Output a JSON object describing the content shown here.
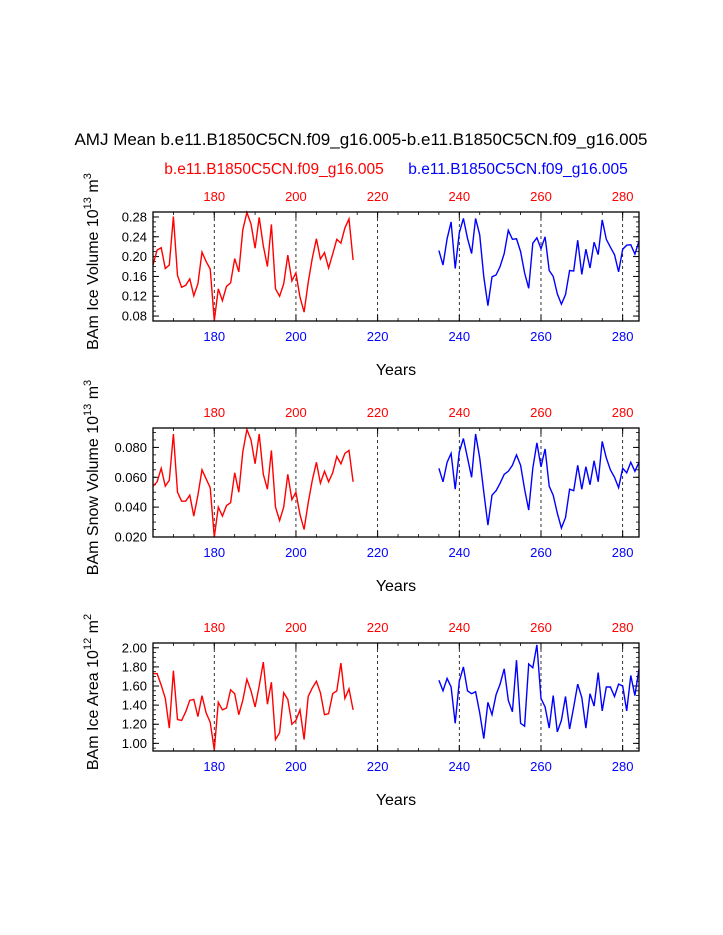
{
  "title": "AMJ Mean b.e11.B1850C5CN.f09_g16.005-b.e11.B1850C5CN.f09_g16.005",
  "legend": {
    "left": "b.e11.B1850C5CN.f09_g16.005",
    "right": "b.e11.B1850C5CN.f09_g16.005"
  },
  "colors": {
    "red": "#ff0000",
    "blue": "#0000ff",
    "axis": "#000000"
  },
  "chart_data": [
    {
      "type": "line",
      "xlabel": "Years",
      "ylabel": {
        "base": "BAm Ice Volume 10",
        "exp": "13",
        "unit": " m",
        "unit_exp": "3"
      },
      "xlim": [
        165,
        284
      ],
      "ylim": [
        0.07,
        0.29
      ],
      "yticks": [
        0.08,
        0.12,
        0.16,
        0.2,
        0.24,
        0.28
      ],
      "ytick_labels": [
        "0.08",
        "0.12",
        "0.16",
        "0.20",
        "0.24",
        "0.28"
      ],
      "yminor": 0.01,
      "xticks": [
        180,
        200,
        220,
        240,
        260,
        280
      ],
      "xtick_labels": [
        "180",
        "200",
        "220",
        "240",
        "260",
        "280"
      ],
      "vlines": [
        180,
        200,
        220,
        240,
        260,
        280
      ],
      "series": [
        {
          "name": "b.e11.B1850C5CN.f09_g16.005",
          "color": "red",
          "x_start": 165,
          "values": [
            0.183,
            0.213,
            0.218,
            0.176,
            0.183,
            0.281,
            0.162,
            0.138,
            0.142,
            0.155,
            0.121,
            0.145,
            0.209,
            0.19,
            0.175,
            0.071,
            0.135,
            0.111,
            0.14,
            0.147,
            0.196,
            0.169,
            0.254,
            0.289,
            0.266,
            0.217,
            0.279,
            0.222,
            0.18,
            0.265,
            0.135,
            0.12,
            0.145,
            0.203,
            0.151,
            0.167,
            0.118,
            0.088,
            0.148,
            0.197,
            0.236,
            0.195,
            0.208,
            0.177,
            0.205,
            0.235,
            0.227,
            0.258,
            0.276,
            0.193
          ]
        },
        {
          "name": "b.e11.B1850C5CN.f09_g16.005",
          "color": "blue",
          "x_start": 235,
          "values": [
            0.212,
            0.183,
            0.236,
            0.27,
            0.176,
            0.248,
            0.277,
            0.237,
            0.206,
            0.277,
            0.244,
            0.159,
            0.101,
            0.159,
            0.163,
            0.18,
            0.206,
            0.253,
            0.235,
            0.236,
            0.21,
            0.167,
            0.136,
            0.227,
            0.238,
            0.216,
            0.24,
            0.172,
            0.16,
            0.125,
            0.104,
            0.123,
            0.172,
            0.171,
            0.233,
            0.164,
            0.215,
            0.177,
            0.229,
            0.204,
            0.274,
            0.235,
            0.219,
            0.204,
            0.169,
            0.215,
            0.223,
            0.224,
            0.205,
            0.231
          ]
        }
      ]
    },
    {
      "type": "line",
      "xlabel": "Years",
      "ylabel": {
        "base": "BAm Snow Volume 10",
        "exp": "13",
        "unit": " m",
        "unit_exp": "3"
      },
      "xlim": [
        165,
        284
      ],
      "ylim": [
        0.02,
        0.093
      ],
      "yticks": [
        0.02,
        0.04,
        0.06,
        0.08
      ],
      "ytick_labels": [
        "0.020",
        "0.040",
        "0.060",
        "0.080"
      ],
      "yminor": 0.005,
      "xticks": [
        180,
        200,
        220,
        240,
        260,
        280
      ],
      "xtick_labels": [
        "180",
        "200",
        "220",
        "240",
        "260",
        "280"
      ],
      "vlines": [
        180,
        200,
        220,
        240,
        260,
        280
      ],
      "series": [
        {
          "name": "b.e11.B1850C5CN.f09_g16.005",
          "color": "red",
          "x_start": 165,
          "values": [
            0.054,
            0.057,
            0.066,
            0.054,
            0.058,
            0.089,
            0.05,
            0.044,
            0.044,
            0.048,
            0.034,
            0.048,
            0.065,
            0.059,
            0.053,
            0.02,
            0.04,
            0.034,
            0.041,
            0.043,
            0.063,
            0.05,
            0.077,
            0.092,
            0.085,
            0.069,
            0.089,
            0.062,
            0.052,
            0.078,
            0.04,
            0.031,
            0.04,
            0.062,
            0.045,
            0.05,
            0.035,
            0.025,
            0.043,
            0.058,
            0.07,
            0.056,
            0.064,
            0.057,
            0.063,
            0.074,
            0.069,
            0.076,
            0.078,
            0.057
          ]
        },
        {
          "name": "b.e11.B1850C5CN.f09_g16.005",
          "color": "blue",
          "x_start": 235,
          "values": [
            0.066,
            0.057,
            0.07,
            0.076,
            0.052,
            0.077,
            0.086,
            0.073,
            0.06,
            0.089,
            0.073,
            0.05,
            0.028,
            0.048,
            0.051,
            0.056,
            0.062,
            0.064,
            0.068,
            0.075,
            0.068,
            0.052,
            0.038,
            0.066,
            0.083,
            0.067,
            0.079,
            0.054,
            0.048,
            0.036,
            0.026,
            0.033,
            0.052,
            0.051,
            0.068,
            0.052,
            0.067,
            0.055,
            0.071,
            0.057,
            0.084,
            0.073,
            0.065,
            0.06,
            0.053,
            0.066,
            0.063,
            0.07,
            0.064,
            0.07
          ]
        }
      ]
    },
    {
      "type": "line",
      "xlabel": "Years",
      "ylabel": {
        "base": "BAm Ice Area 10",
        "exp": "12",
        "unit": " m",
        "unit_exp": "2"
      },
      "xlim": [
        165,
        284
      ],
      "ylim": [
        0.92,
        2.05
      ],
      "yticks": [
        1.0,
        1.2,
        1.4,
        1.6,
        1.8,
        2.0
      ],
      "ytick_labels": [
        "1.00",
        "1.20",
        "1.40",
        "1.60",
        "1.80",
        "2.00"
      ],
      "yminor": 0.05,
      "xticks": [
        180,
        200,
        220,
        240,
        260,
        280
      ],
      "xtick_labels": [
        "180",
        "200",
        "220",
        "240",
        "260",
        "280"
      ],
      "vlines": [
        180,
        200,
        220,
        240,
        260,
        280
      ],
      "series": [
        {
          "name": "b.e11.B1850C5CN.f09_g16.005",
          "color": "red",
          "x_start": 165,
          "values": [
            1.73,
            1.73,
            1.61,
            1.47,
            1.16,
            1.76,
            1.25,
            1.24,
            1.33,
            1.45,
            1.46,
            1.28,
            1.5,
            1.32,
            1.22,
            0.93,
            1.43,
            1.35,
            1.37,
            1.56,
            1.52,
            1.3,
            1.45,
            1.67,
            1.55,
            1.38,
            1.6,
            1.85,
            1.41,
            1.64,
            1.04,
            1.11,
            1.53,
            1.46,
            1.2,
            1.24,
            1.35,
            1.04,
            1.49,
            1.58,
            1.65,
            1.53,
            1.3,
            1.31,
            1.52,
            1.55,
            1.84,
            1.47,
            1.57,
            1.35
          ]
        },
        {
          "name": "b.e11.B1850C5CN.f09_g16.005",
          "color": "blue",
          "x_start": 235,
          "values": [
            1.66,
            1.55,
            1.68,
            1.59,
            1.21,
            1.65,
            1.8,
            1.55,
            1.52,
            1.54,
            1.32,
            1.05,
            1.43,
            1.3,
            1.51,
            1.62,
            1.78,
            1.45,
            1.33,
            1.87,
            1.21,
            1.18,
            1.83,
            1.79,
            2.03,
            1.47,
            1.38,
            1.16,
            1.5,
            1.12,
            1.24,
            1.49,
            1.15,
            1.38,
            1.62,
            1.48,
            1.16,
            1.52,
            1.39,
            1.74,
            1.34,
            1.59,
            1.59,
            1.49,
            1.62,
            1.6,
            1.34,
            1.71,
            1.5,
            1.78
          ]
        }
      ]
    }
  ]
}
